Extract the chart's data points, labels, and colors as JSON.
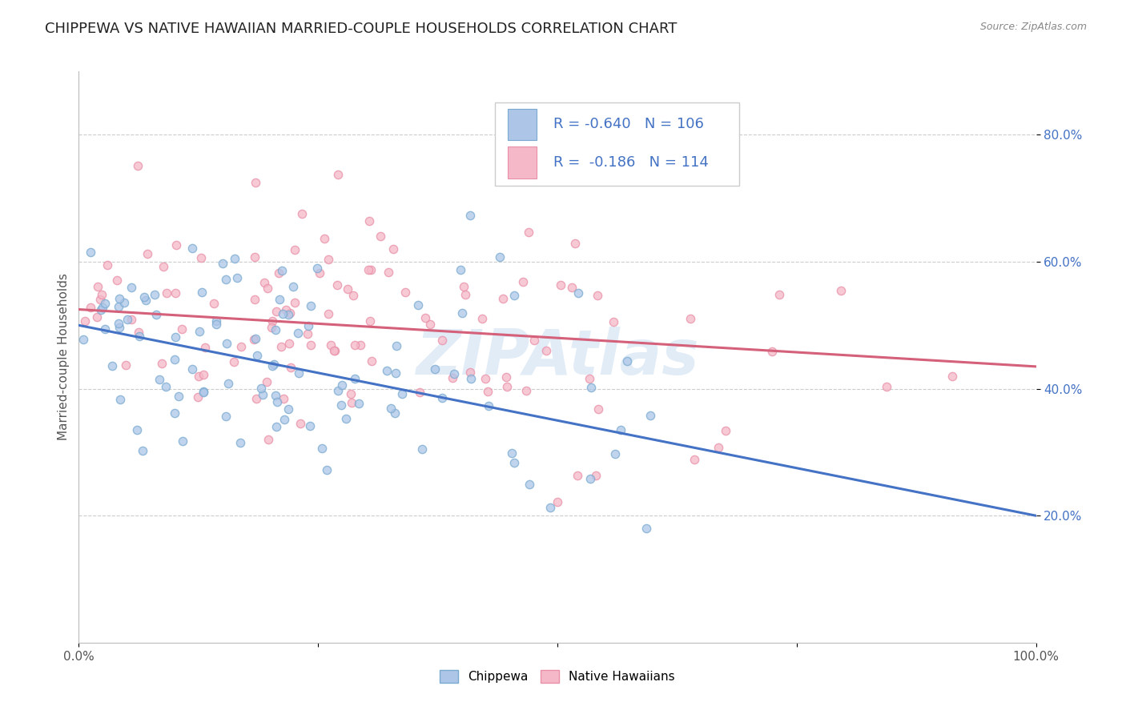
{
  "title": "CHIPPEWA VS NATIVE HAWAIIAN MARRIED-COUPLE HOUSEHOLDS CORRELATION CHART",
  "source": "Source: ZipAtlas.com",
  "ylabel": "Married-couple Households",
  "ytick_labels": [
    "20.0%",
    "40.0%",
    "60.0%",
    "80.0%"
  ],
  "ytick_values": [
    0.2,
    0.4,
    0.6,
    0.8
  ],
  "xlim": [
    0.0,
    1.0
  ],
  "ylim": [
    0.0,
    0.9
  ],
  "legend_blue_r": "-0.640",
  "legend_blue_n": "106",
  "legend_pink_r": "-0.186",
  "legend_pink_n": "114",
  "legend_label_blue": "Chippewa",
  "legend_label_pink": "Native Hawaiians",
  "color_blue": "#adc6e8",
  "color_pink": "#f5b8c8",
  "line_blue": "#4472c4",
  "line_pink": "#d4607a",
  "watermark": "ZIPAtlas",
  "blue_line_y0": 0.5,
  "blue_line_y1": 0.2,
  "pink_line_y0": 0.525,
  "pink_line_y1": 0.435,
  "background_color": "#ffffff",
  "grid_color": "#cccccc",
  "title_fontsize": 13,
  "axis_label_fontsize": 11,
  "tick_fontsize": 11,
  "legend_fontsize": 13,
  "scatter_size": 55,
  "scatter_alpha": 0.75,
  "scatter_linewidth": 1.0,
  "scatter_edgecolor_blue": "#7aaad0",
  "scatter_edgecolor_pink": "#e890a8",
  "ytick_color": "#4472c4",
  "xtick_color": "#555555"
}
